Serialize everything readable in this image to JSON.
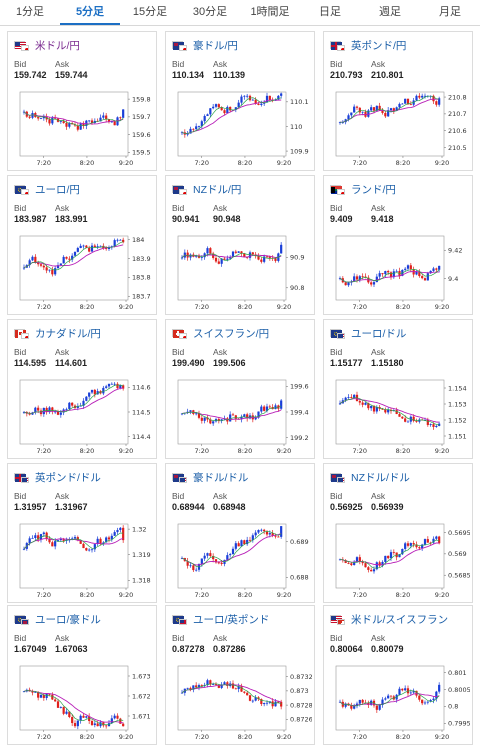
{
  "tabs": [
    "1分足",
    "5分足",
    "15分足",
    "30分足",
    "1時間足",
    "日足",
    "週足",
    "月足"
  ],
  "active_tab": 1,
  "labels": {
    "bid": "Bid",
    "ask": "Ask"
  },
  "colors": {
    "accent": "#1c6fc4",
    "up": "#1a3fd8",
    "down": "#e0201c",
    "ma": "#b820b8",
    "ma2": "#2aa34a"
  },
  "cards": [
    {
      "name": "米ドル/円",
      "flag": "us-jp",
      "purple": true,
      "bid": "159.742",
      "ask": "159.744",
      "chart_data": {
        "type": "candlestick",
        "x_ticks": [
          "7:20",
          "8:20",
          "9:20"
        ],
        "y_ticks": [
          "159.8",
          "159.7",
          "159.6",
          "159.5"
        ],
        "ylim": [
          159.48,
          159.84
        ]
      }
    },
    {
      "name": "豪ドル/円",
      "flag": "au-jp",
      "purple": false,
      "bid": "110.134",
      "ask": "110.139",
      "chart_data": {
        "type": "candlestick",
        "x_ticks": [
          "7:20",
          "8:20",
          "9:20"
        ],
        "y_ticks": [
          "110.1",
          "110",
          "109.9"
        ],
        "ylim": [
          109.88,
          110.14
        ]
      }
    },
    {
      "name": "英ポンド/円",
      "flag": "gb-jp",
      "purple": false,
      "bid": "210.793",
      "ask": "210.801",
      "chart_data": {
        "type": "candlestick",
        "x_ticks": [
          "7:20",
          "8:20",
          "9:20"
        ],
        "y_ticks": [
          "210.8",
          "210.7",
          "210.6",
          "210.5"
        ],
        "ylim": [
          210.45,
          210.83
        ]
      }
    },
    {
      "name": "ユーロ/円",
      "flag": "eu-jp",
      "purple": false,
      "bid": "183.987",
      "ask": "183.991",
      "chart_data": {
        "type": "candlestick",
        "x_ticks": [
          "7:20",
          "8:20",
          "9:20"
        ],
        "y_ticks": [
          "184",
          "183.9",
          "183.8",
          "183.7"
        ],
        "ylim": [
          183.68,
          184.02
        ]
      }
    },
    {
      "name": "NZドル/円",
      "flag": "nz-jp",
      "purple": false,
      "bid": "90.941",
      "ask": "90.948",
      "chart_data": {
        "type": "candlestick",
        "x_ticks": [
          "7:20",
          "8:20",
          "9:20"
        ],
        "y_ticks": [
          "90.9",
          "90.8"
        ],
        "ylim": [
          90.76,
          90.97
        ]
      }
    },
    {
      "name": "ランド/円",
      "flag": "za-jp",
      "purple": false,
      "bid": "9.409",
      "ask": "9.418",
      "chart_data": {
        "type": "candlestick",
        "x_ticks": [
          "7:20",
          "8:20",
          "9:20"
        ],
        "y_ticks": [
          "9.42",
          "9.4"
        ],
        "ylim": [
          9.385,
          9.43
        ]
      }
    },
    {
      "name": "カナダドル/円",
      "flag": "ca-jp",
      "purple": false,
      "bid": "114.595",
      "ask": "114.601",
      "chart_data": {
        "type": "candlestick",
        "x_ticks": [
          "7:20",
          "8:20",
          "9:20"
        ],
        "y_ticks": [
          "114.6",
          "114.5",
          "114.4"
        ],
        "ylim": [
          114.37,
          114.63
        ]
      }
    },
    {
      "name": "スイスフラン/円",
      "flag": "ch-jp",
      "purple": false,
      "bid": "199.490",
      "ask": "199.506",
      "chart_data": {
        "type": "candlestick",
        "x_ticks": [
          "7:20",
          "8:20",
          "9:20"
        ],
        "y_ticks": [
          "199.6",
          "199.4",
          "199.2"
        ],
        "ylim": [
          199.15,
          199.65
        ]
      }
    },
    {
      "name": "ユーロ/ドル",
      "flag": "eu-us",
      "purple": false,
      "bid": "1.15177",
      "ask": "1.15180",
      "chart_data": {
        "type": "candlestick",
        "x_ticks": [
          "7:20",
          "8:20",
          "9:20"
        ],
        "y_ticks": [
          "1.154",
          "1.153",
          "1.152",
          "1.151"
        ],
        "ylim": [
          1.1505,
          1.1545
        ]
      }
    },
    {
      "name": "英ポンド/ドル",
      "flag": "gb-us",
      "purple": false,
      "bid": "1.31957",
      "ask": "1.31967",
      "chart_data": {
        "type": "candlestick",
        "x_ticks": [
          "7:20",
          "8:20",
          "9:20"
        ],
        "y_ticks": [
          "1.32",
          "1.319",
          "1.318"
        ],
        "ylim": [
          1.3177,
          1.3202
        ]
      }
    },
    {
      "name": "豪ドル/ドル",
      "flag": "au-us",
      "purple": false,
      "bid": "0.68944",
      "ask": "0.68948",
      "chart_data": {
        "type": "candlestick",
        "x_ticks": [
          "7:20",
          "8:20",
          "9:20"
        ],
        "y_ticks": [
          "0.689",
          "0.688"
        ],
        "ylim": [
          0.6877,
          0.6895
        ]
      }
    },
    {
      "name": "NZドル/ドル",
      "flag": "nz-us",
      "purple": false,
      "bid": "0.56925",
      "ask": "0.56939",
      "chart_data": {
        "type": "candlestick",
        "x_ticks": [
          "7:20",
          "8:20",
          "9:20"
        ],
        "y_ticks": [
          "0.5695",
          "0.569",
          "0.5685"
        ],
        "ylim": [
          0.5682,
          0.5697
        ]
      }
    },
    {
      "name": "ユーロ/豪ドル",
      "flag": "eu-au",
      "purple": false,
      "bid": "1.67049",
      "ask": "1.67063",
      "chart_data": {
        "type": "candlestick",
        "x_ticks": [
          "7:20",
          "8:20",
          "9:20"
        ],
        "y_ticks": [
          "1.673",
          "1.672",
          "1.671"
        ],
        "ylim": [
          1.6703,
          1.6735
        ]
      }
    },
    {
      "name": "ユーロ/英ポンド",
      "flag": "eu-gb",
      "purple": false,
      "bid": "0.87278",
      "ask": "0.87286",
      "chart_data": {
        "type": "candlestick",
        "x_ticks": [
          "7:20",
          "8:20",
          "9:20"
        ],
        "y_ticks": [
          "0.8732",
          "0.873",
          "0.8728",
          "0.8726"
        ],
        "ylim": [
          0.87245,
          0.87335
        ]
      }
    },
    {
      "name": "米ドル/スイスフラン",
      "flag": "us-ch",
      "purple": false,
      "bid": "0.80064",
      "ask": "0.80079",
      "chart_data": {
        "type": "candlestick",
        "x_ticks": [
          "7:20",
          "8:20",
          "9:20"
        ],
        "y_ticks": [
          "0.801",
          "0.8005",
          "0.8",
          "0.7995"
        ],
        "ylim": [
          0.7993,
          0.8012
        ]
      }
    }
  ]
}
